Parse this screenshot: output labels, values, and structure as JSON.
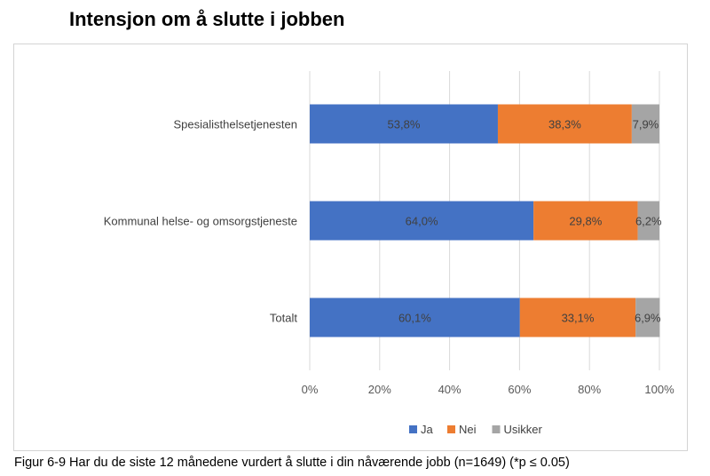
{
  "title": "Intensjon om å slutte i jobben",
  "caption": "Figur 6-9 Har du de siste 12 månedene vurdert å slutte i din nåværende jobb (n=1649) (*p ≤ 0.05)",
  "chart_data": {
    "type": "bar",
    "orientation": "horizontal",
    "stacked": "percent",
    "categories": [
      "Spesialisthelsetjenesten",
      "Kommunal helse- og omsorgstjeneste",
      "Totalt"
    ],
    "series": [
      {
        "name": "Ja",
        "color": "#4472C4",
        "values": [
          53.8,
          64.0,
          60.1
        ],
        "labels": [
          "53,8%",
          "64,0%",
          "60,1%"
        ]
      },
      {
        "name": "Nei",
        "color": "#ED7D31",
        "values": [
          38.3,
          29.8,
          33.1
        ],
        "labels": [
          "38,3%",
          "29,8%",
          "33,1%"
        ]
      },
      {
        "name": "Usikker",
        "color": "#A5A5A5",
        "values": [
          7.9,
          6.2,
          6.9
        ],
        "labels": [
          "7,9%",
          "6,2%",
          "6,9%"
        ]
      }
    ],
    "xticks": [
      "0%",
      "20%",
      "40%",
      "60%",
      "80%",
      "100%"
    ],
    "xlim": [
      0,
      100
    ],
    "grid": true,
    "legend": "bottom"
  }
}
